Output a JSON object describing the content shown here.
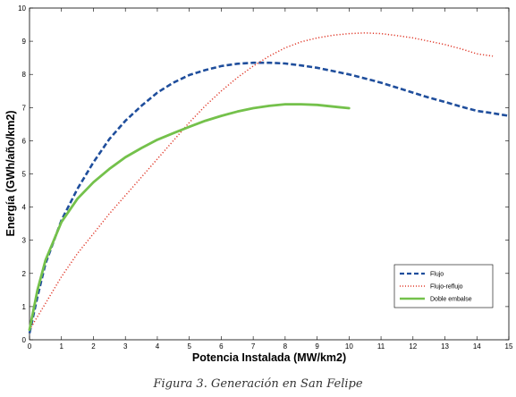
{
  "caption": "Figura 3. Generación en San Felipe",
  "chart_data": {
    "type": "line",
    "xlabel": "Potencia Instalada (MW/km2)",
    "ylabel": "Energía (GWh/año/km2)",
    "xlim": [
      0,
      15
    ],
    "ylim": [
      0,
      10
    ],
    "xticks": [
      0,
      1,
      2,
      3,
      4,
      5,
      6,
      7,
      8,
      9,
      10,
      11,
      12,
      13,
      14,
      15
    ],
    "yticks": [
      0,
      1,
      2,
      3,
      4,
      5,
      6,
      7,
      8,
      9,
      10
    ],
    "grid": false,
    "legend_position": "bottom-right",
    "series": [
      {
        "name": "Flujo",
        "color": "#1f4e9c",
        "style": "dashed",
        "x": [
          0,
          0.25,
          0.5,
          1,
          1.5,
          2,
          2.5,
          3,
          3.5,
          4,
          4.5,
          5,
          5.5,
          6,
          6.5,
          7,
          7.5,
          8,
          8.5,
          9,
          9.5,
          10,
          10.5,
          11,
          11.5,
          12,
          12.5,
          13,
          13.5,
          14,
          14.5,
          15
        ],
        "y": [
          0.2,
          1.3,
          2.3,
          3.6,
          4.55,
          5.35,
          6.05,
          6.6,
          7.05,
          7.45,
          7.75,
          7.98,
          8.13,
          8.25,
          8.32,
          8.35,
          8.35,
          8.33,
          8.27,
          8.2,
          8.1,
          8.0,
          7.88,
          7.75,
          7.6,
          7.45,
          7.3,
          7.17,
          7.03,
          6.9,
          6.83,
          6.75
        ]
      },
      {
        "name": "Flujo-reflujo",
        "color": "#e03b2c",
        "style": "dotted",
        "x": [
          0,
          0.5,
          1,
          1.5,
          2,
          2.5,
          3,
          3.5,
          4,
          4.5,
          5,
          5.5,
          6,
          6.5,
          7,
          7.5,
          8,
          8.5,
          9,
          9.5,
          10,
          10.5,
          11,
          11.5,
          12,
          12.5,
          13,
          13.5,
          14,
          14.5
        ],
        "y": [
          0.3,
          1.1,
          1.9,
          2.6,
          3.2,
          3.8,
          4.35,
          4.9,
          5.45,
          6.0,
          6.55,
          7.05,
          7.5,
          7.9,
          8.25,
          8.55,
          8.8,
          8.98,
          9.1,
          9.18,
          9.23,
          9.25,
          9.23,
          9.17,
          9.1,
          9.0,
          8.9,
          8.77,
          8.62,
          8.55
        ]
      },
      {
        "name": "Doble embalse",
        "color": "#74c14b",
        "style": "solid",
        "x": [
          0,
          0.25,
          0.5,
          1,
          1.5,
          2,
          2.5,
          3,
          3.5,
          4,
          4.5,
          5,
          5.5,
          6,
          6.5,
          7,
          7.5,
          8,
          8.5,
          9,
          9.5,
          10
        ],
        "y": [
          0.3,
          1.5,
          2.4,
          3.55,
          4.25,
          4.75,
          5.15,
          5.5,
          5.78,
          6.03,
          6.23,
          6.42,
          6.6,
          6.75,
          6.88,
          6.98,
          7.05,
          7.1,
          7.1,
          7.08,
          7.03,
          6.98
        ]
      }
    ]
  }
}
